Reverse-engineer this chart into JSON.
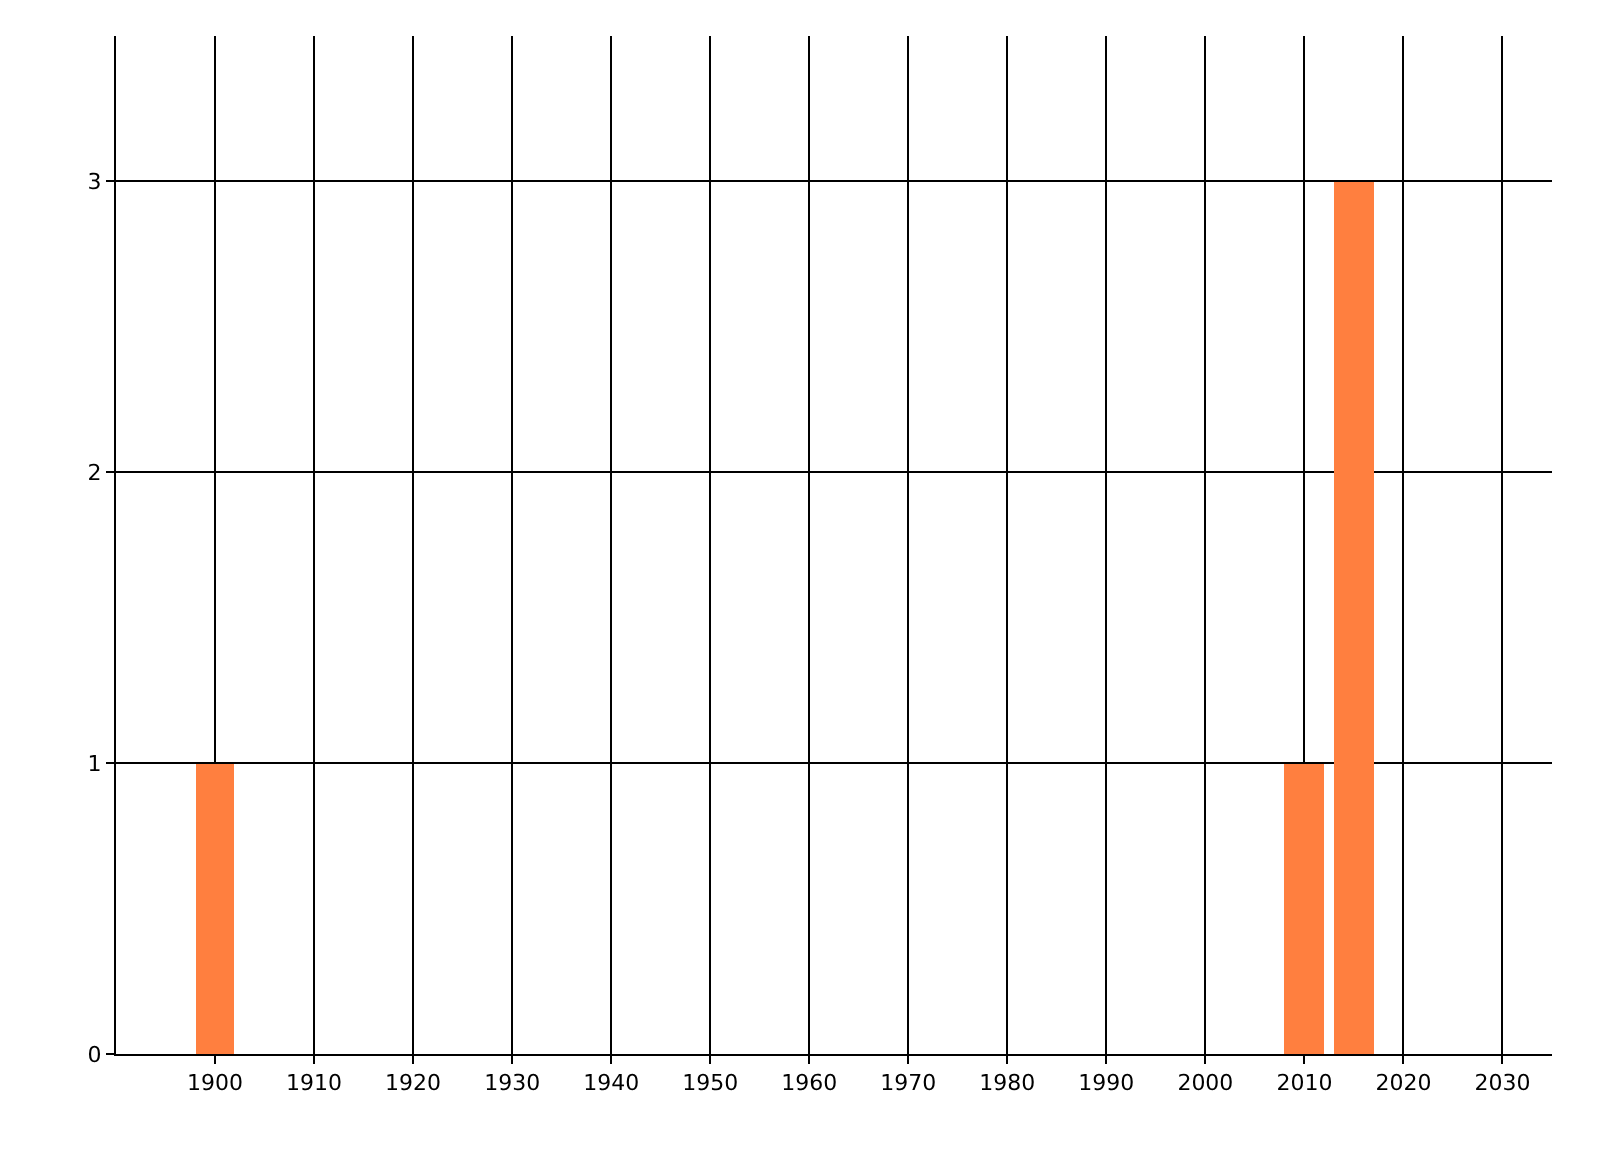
{
  "chart_data": {
    "type": "bar",
    "x": [
      1900,
      2010,
      2015
    ],
    "values": [
      1,
      1,
      3
    ],
    "color": "#ff7f3f",
    "xlim": [
      1890,
      2035
    ],
    "xticks": [
      1900,
      1910,
      1920,
      1930,
      1940,
      1950,
      1960,
      1970,
      1980,
      1990,
      2000,
      2010,
      2020,
      2030
    ],
    "ylim": [
      0,
      3.5
    ],
    "yticks": [
      0,
      1,
      2,
      3
    ],
    "grid": true,
    "legend": false
  }
}
